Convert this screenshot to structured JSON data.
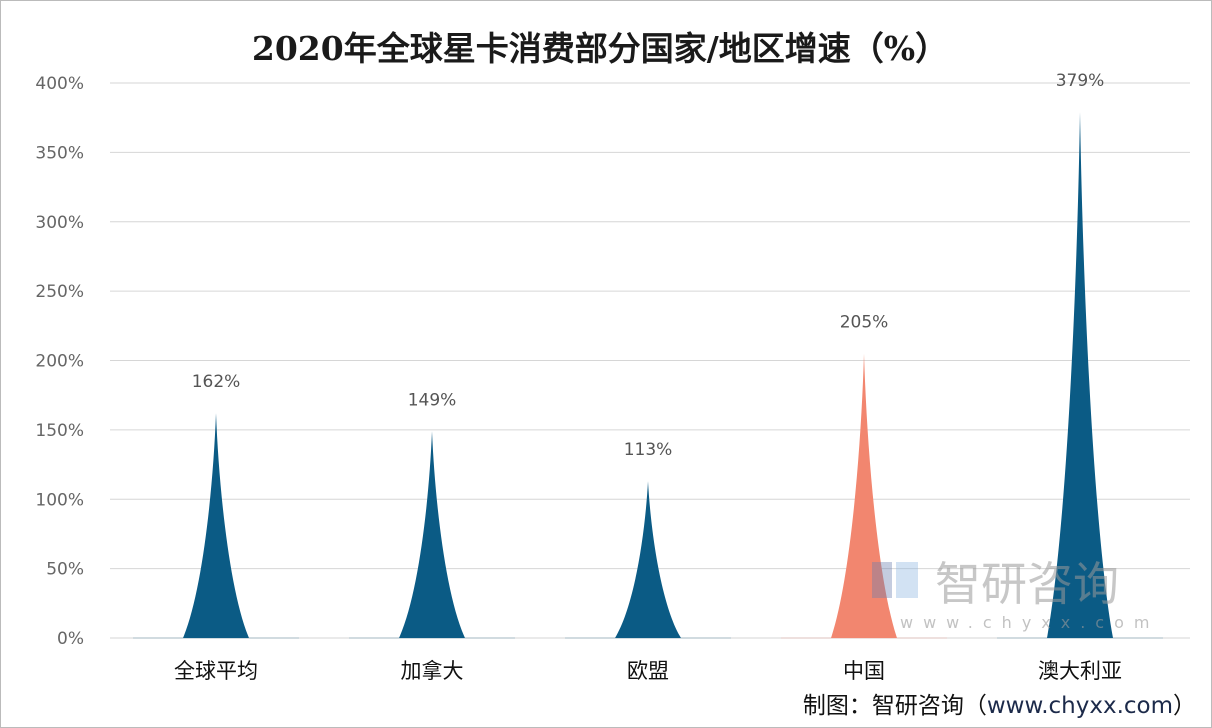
{
  "chart_data": {
    "type": "bar",
    "mark_style": "pictorial-spike",
    "title": "2020年全球星卡消费部分国家/地区增速（%）",
    "categories": [
      "全球平均",
      "加拿大",
      "欧盟",
      "中国",
      "澳大利亚"
    ],
    "values": [
      162,
      149,
      113,
      205,
      379
    ],
    "data_labels": [
      "162%",
      "149%",
      "113%",
      "205%",
      "379%"
    ],
    "colors": [
      "#0b5b85",
      "#0b5b85",
      "#0b5b85",
      "#f2866f",
      "#0b5b85"
    ],
    "ylim": [
      0,
      400
    ],
    "yticks": [
      0,
      50,
      100,
      150,
      200,
      250,
      300,
      350,
      400
    ],
    "ytick_labels": [
      "0%",
      "50%",
      "100%",
      "150%",
      "200%",
      "250%",
      "300%",
      "350%",
      "400%"
    ],
    "grid": true,
    "legend": "none",
    "xlabel": "",
    "ylabel": ""
  },
  "source": {
    "prefix": "制图：智研咨询（",
    "url": "www.chyxx.com",
    "suffix": "）"
  },
  "watermark": {
    "text": "智研咨询",
    "url": "w w w . c h y x x . c o m"
  }
}
